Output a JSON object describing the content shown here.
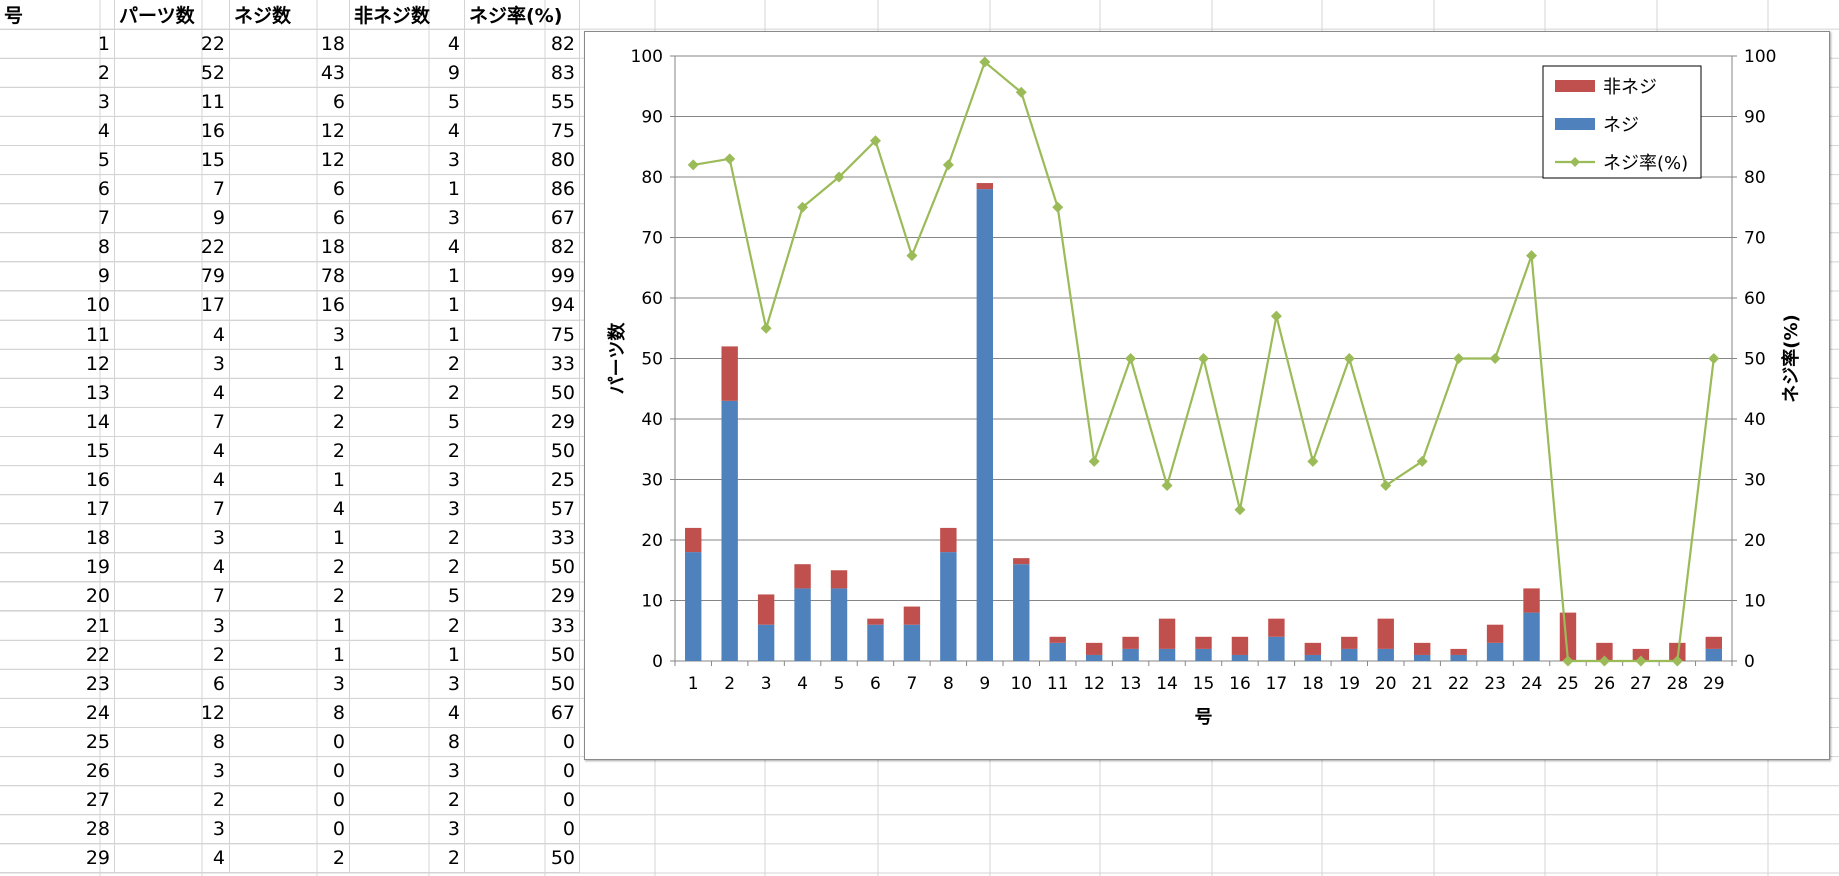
{
  "sheet": {
    "headers": [
      "号",
      "パーツ数",
      "ネジ数",
      "非ネジ数",
      "ネジ率(%)"
    ],
    "rows": [
      [
        1,
        22,
        18,
        4,
        82
      ],
      [
        2,
        52,
        43,
        9,
        83
      ],
      [
        3,
        11,
        6,
        5,
        55
      ],
      [
        4,
        16,
        12,
        4,
        75
      ],
      [
        5,
        15,
        12,
        3,
        80
      ],
      [
        6,
        7,
        6,
        1,
        86
      ],
      [
        7,
        9,
        6,
        3,
        67
      ],
      [
        8,
        22,
        18,
        4,
        82
      ],
      [
        9,
        79,
        78,
        1,
        99
      ],
      [
        10,
        17,
        16,
        1,
        94
      ],
      [
        11,
        4,
        3,
        1,
        75
      ],
      [
        12,
        3,
        1,
        2,
        33
      ],
      [
        13,
        4,
        2,
        2,
        50
      ],
      [
        14,
        7,
        2,
        5,
        29
      ],
      [
        15,
        4,
        2,
        2,
        50
      ],
      [
        16,
        4,
        1,
        3,
        25
      ],
      [
        17,
        7,
        4,
        3,
        57
      ],
      [
        18,
        3,
        1,
        2,
        33
      ],
      [
        19,
        4,
        2,
        2,
        50
      ],
      [
        20,
        7,
        2,
        5,
        29
      ],
      [
        21,
        3,
        1,
        2,
        33
      ],
      [
        22,
        2,
        1,
        1,
        50
      ],
      [
        23,
        6,
        3,
        3,
        50
      ],
      [
        24,
        12,
        8,
        4,
        67
      ],
      [
        25,
        8,
        0,
        8,
        0
      ],
      [
        26,
        3,
        0,
        3,
        0
      ],
      [
        27,
        2,
        0,
        2,
        0
      ],
      [
        28,
        3,
        0,
        3,
        0
      ],
      [
        29,
        4,
        2,
        2,
        50
      ]
    ]
  },
  "colors": {
    "screw": "#4f81bd",
    "nonscrew": "#c0504d",
    "ratio": "#9bbb59",
    "gridline": "#868686",
    "sheet_grid": "#d4d4d4"
  },
  "chart_data": {
    "type": "bar",
    "stacked": true,
    "categories": [
      "1",
      "2",
      "3",
      "4",
      "5",
      "6",
      "7",
      "8",
      "9",
      "10",
      "11",
      "12",
      "13",
      "14",
      "15",
      "16",
      "17",
      "18",
      "19",
      "20",
      "21",
      "22",
      "23",
      "24",
      "25",
      "26",
      "27",
      "28",
      "29"
    ],
    "series": [
      {
        "name": "ネジ",
        "type": "bar",
        "axis": "left",
        "values": [
          18,
          43,
          6,
          12,
          12,
          6,
          6,
          18,
          78,
          16,
          3,
          1,
          2,
          2,
          2,
          1,
          4,
          1,
          2,
          2,
          1,
          1,
          3,
          8,
          0,
          0,
          0,
          0,
          2
        ]
      },
      {
        "name": "非ネジ",
        "type": "bar",
        "axis": "left",
        "values": [
          4,
          9,
          5,
          4,
          3,
          1,
          3,
          4,
          1,
          1,
          1,
          2,
          2,
          5,
          2,
          3,
          3,
          2,
          2,
          5,
          2,
          1,
          3,
          4,
          8,
          3,
          2,
          3,
          2
        ]
      },
      {
        "name": "ネジ率(%)",
        "type": "line",
        "axis": "right",
        "values": [
          82,
          83,
          55,
          75,
          80,
          86,
          67,
          82,
          99,
          94,
          75,
          33,
          50,
          29,
          50,
          25,
          57,
          33,
          50,
          29,
          33,
          50,
          50,
          67,
          0,
          0,
          0,
          0,
          50
        ]
      }
    ],
    "legend_order": [
      "非ネジ",
      "ネジ",
      "ネジ率(%)"
    ],
    "legend_position": "top-right",
    "xlabel": "号",
    "ylabel": "パーツ数",
    "y2label": "ネジ率(%)",
    "ylim": [
      0,
      100
    ],
    "y2lim": [
      0,
      100
    ],
    "yticks": [
      0,
      10,
      20,
      30,
      40,
      50,
      60,
      70,
      80,
      90,
      100
    ],
    "grid": true
  }
}
